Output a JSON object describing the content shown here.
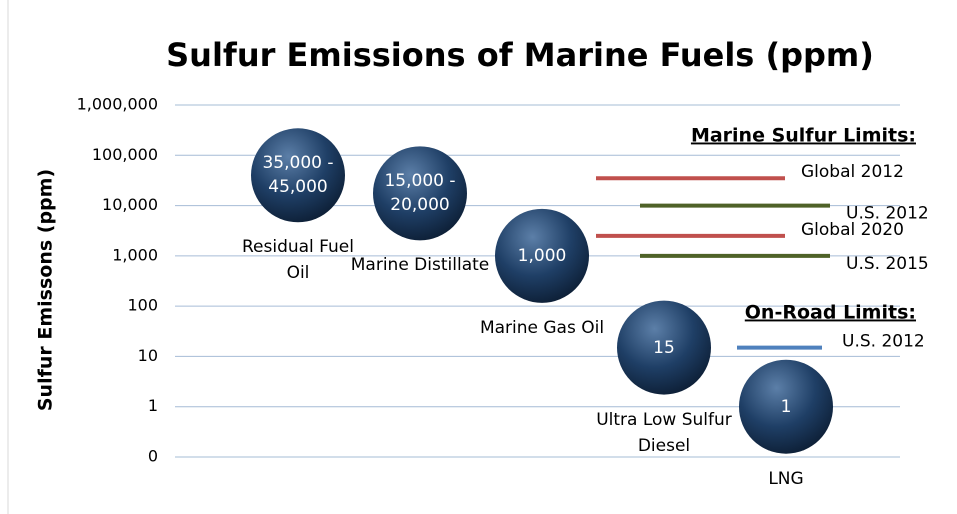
{
  "chart_data": {
    "type": "bubble",
    "title": "Sulfur Emissions of Marine Fuels (ppm)",
    "y_label": "Sulfur Emissons (ppm)",
    "categories": [
      "Residual Fuel Oil",
      "Marine Distillate",
      "Marine Gas Oil",
      "Ultra Low Sulfur Diesel",
      "LNG"
    ],
    "series": [
      {
        "color": "#1f3f66",
        "values": [
          40000,
          17500,
          1000,
          15,
          1
        ],
        "value_labels": [
          "35,000 - 45,000",
          "15,000 - 20,000",
          "1,000",
          "15",
          "1"
        ]
      }
    ],
    "log_scale": true,
    "ylim": [
      0.1,
      1000000
    ],
    "yticks": [
      {
        "value": 0.1,
        "label": "0"
      },
      1,
      10,
      100,
      {
        "value": 1000,
        "label": "1,000"
      },
      {
        "value": 10000,
        "label": "10,000"
      },
      {
        "value": 100000,
        "label": "100,000"
      },
      {
        "value": 1000000,
        "label": "1,000,000"
      }
    ],
    "grid": true,
    "limit_groups": [
      {
        "title": "Marine Sulfur Limits:",
        "limits": [
          {
            "name": "Global 2012",
            "color": "#c0504d",
            "value": 35000
          },
          {
            "name": "U.S. 2012",
            "color": "#4f6228",
            "value": 10000
          },
          {
            "name": "Global 2020",
            "color": "#c0504d",
            "value": 2500
          },
          {
            "name": "U.S. 2015",
            "color": "#4f6228",
            "value": 1000
          }
        ]
      },
      {
        "title": "On-Road Limits:",
        "limits": [
          {
            "name": "U.S. 2012",
            "color": "#4f81bd",
            "value": 15
          }
        ]
      }
    ]
  }
}
